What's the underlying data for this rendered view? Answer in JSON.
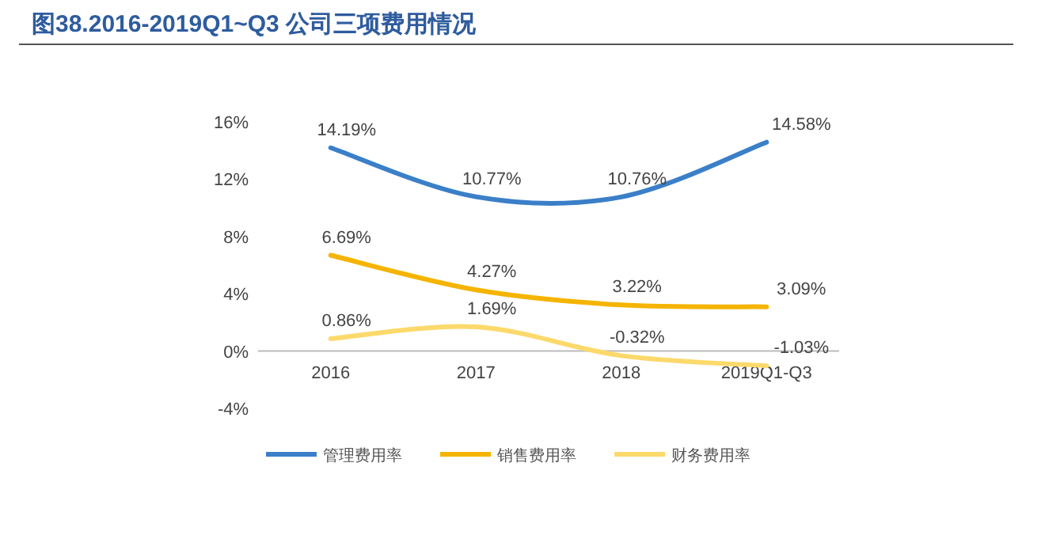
{
  "chart_data": {
    "type": "line",
    "title": "图38.2016-2019Q1~Q3 公司三项费用情况",
    "categories": [
      "2016",
      "2017",
      "2018",
      "2019Q1-Q3"
    ],
    "series": [
      {
        "name": "管理费用率",
        "color": "#3a7fc8",
        "values": [
          14.19,
          10.77,
          10.76,
          14.58
        ],
        "value_labels": [
          "14.19%",
          "10.77%",
          "10.76%",
          "14.58%"
        ]
      },
      {
        "name": "销售费用率",
        "color": "#f5b400",
        "values": [
          6.69,
          4.27,
          3.22,
          3.09
        ],
        "value_labels": [
          "6.69%",
          "4.27%",
          "3.22%",
          "3.09%"
        ]
      },
      {
        "name": "财务费用率",
        "color": "#fcd96b",
        "values": [
          0.86,
          1.69,
          -0.32,
          -1.03
        ],
        "value_labels": [
          "0.86%",
          "1.69%",
          "-0.32%",
          "-1.03%"
        ]
      }
    ],
    "ylim": [
      -4,
      16
    ],
    "yticks": [
      {
        "value": -4,
        "label": "-4%"
      },
      {
        "value": 0,
        "label": "0%"
      },
      {
        "value": 4,
        "label": "4%"
      },
      {
        "value": 8,
        "label": "8%"
      },
      {
        "value": 12,
        "label": "12%"
      },
      {
        "value": 16,
        "label": "16%"
      }
    ],
    "legend": "bottom",
    "grid": false,
    "marker": "none",
    "line_style": "solid"
  }
}
